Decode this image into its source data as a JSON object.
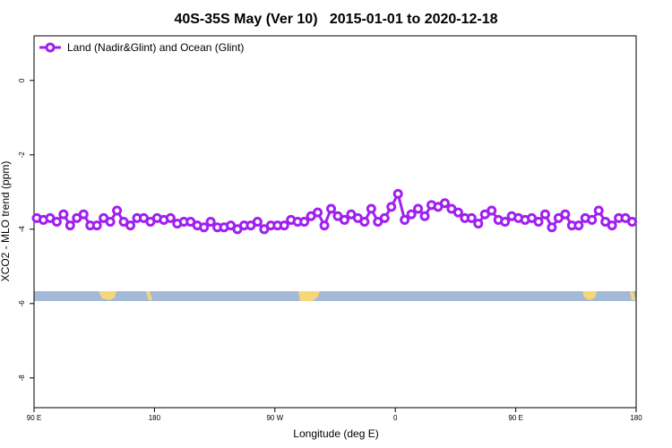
{
  "chart_data": {
    "type": "line",
    "title": "40S-35S May (Ver 10)   2015-01-01 to 2020-12-18",
    "xlabel": "Longitude (deg E)",
    "ylabel": "XCO2 - MLO trend (ppm)",
    "xlim": [
      90,
      540
    ],
    "xticks": [
      {
        "value": 90,
        "label": "90 E"
      },
      180,
      {
        "value": 270,
        "label": "90 W"
      },
      {
        "value": 360,
        "label": "0"
      },
      {
        "value": 450,
        "label": "90 E"
      },
      180
    ],
    "ylim": [
      -8.8,
      1.2
    ],
    "yticks": [
      0,
      -2,
      -4,
      -6,
      -8
    ],
    "legend": "top-left",
    "x": [
      92,
      97,
      102,
      107,
      112,
      117,
      122,
      127,
      132,
      137,
      142,
      147,
      152,
      157,
      162,
      167,
      172,
      177,
      182,
      187,
      192,
      197,
      202,
      207,
      212,
      217,
      222,
      227,
      232,
      237,
      242,
      247,
      252,
      257,
      262,
      267,
      272,
      277,
      282,
      287,
      292,
      297,
      302,
      307,
      312,
      317,
      322,
      327,
      332,
      337,
      342,
      347,
      352,
      357,
      362,
      367,
      372,
      377,
      382,
      387,
      392,
      397,
      402,
      407,
      412,
      417,
      422,
      427,
      432,
      437,
      442,
      447,
      452,
      457,
      462,
      467,
      472,
      477,
      482,
      487,
      492,
      497,
      502,
      507,
      512,
      517,
      522,
      527,
      532,
      537
    ],
    "series": [
      {
        "name": "Land (Nadir&Glint) and Ocean (Glint)",
        "color": "#a020f0",
        "values": [
          -3.7,
          -3.75,
          -3.7,
          -3.8,
          -3.6,
          -3.9,
          -3.7,
          -3.6,
          -3.9,
          -3.9,
          -3.7,
          -3.8,
          -3.5,
          -3.8,
          -3.9,
          -3.7,
          -3.7,
          -3.8,
          -3.7,
          -3.75,
          -3.7,
          -3.85,
          -3.8,
          -3.8,
          -3.9,
          -3.95,
          -3.8,
          -3.95,
          -3.95,
          -3.9,
          -4.0,
          -3.9,
          -3.9,
          -3.8,
          -4.0,
          -3.9,
          -3.9,
          -3.9,
          -3.75,
          -3.8,
          -3.8,
          -3.65,
          -3.55,
          -3.9,
          -3.45,
          -3.65,
          -3.75,
          -3.6,
          -3.7,
          -3.8,
          -3.45,
          -3.8,
          -3.7,
          -3.4,
          -3.05,
          -3.75,
          -3.6,
          -3.45,
          -3.65,
          -3.35,
          -3.4,
          -3.3,
          -3.45,
          -3.55,
          -3.7,
          -3.7,
          -3.85,
          -3.6,
          -3.5,
          -3.75,
          -3.8,
          -3.65,
          -3.7,
          -3.75,
          -3.7,
          -3.8,
          -3.6,
          -3.95,
          -3.7,
          -3.6,
          -3.9,
          -3.9,
          -3.7,
          -3.75,
          -3.5,
          -3.8,
          -3.9,
          -3.7,
          -3.7,
          -3.8
        ]
      }
    ]
  }
}
